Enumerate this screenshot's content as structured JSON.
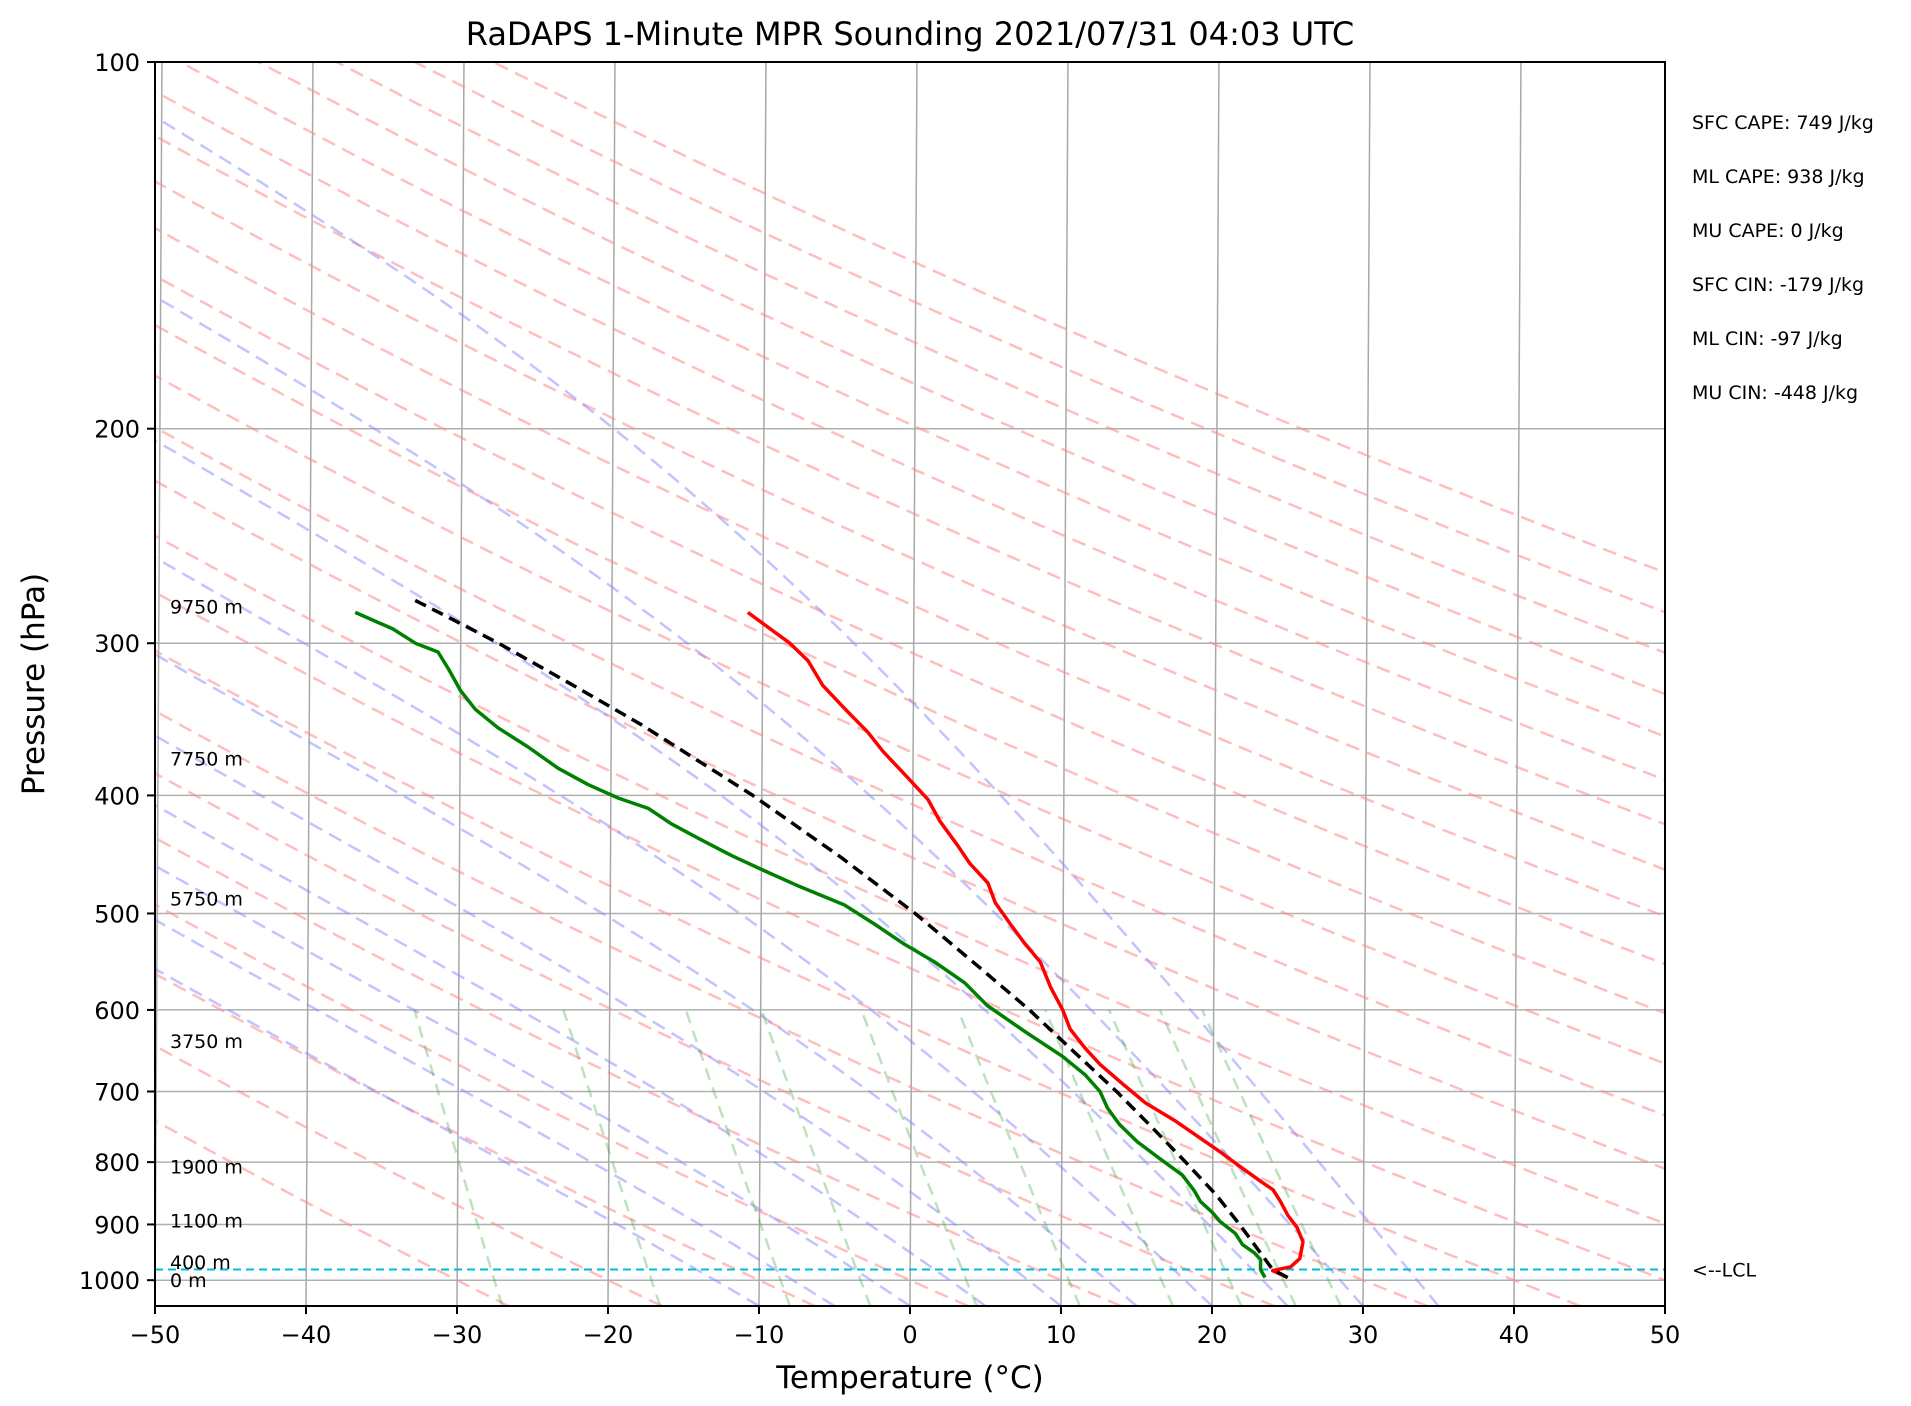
{
  "chart_data": {
    "type": "skew-t",
    "title": "RaDAPS 1-Minute MPR Sounding 2021/07/31 04:03 UTC",
    "xlabel": "Temperature (°C)",
    "ylabel": "Pressure (hPa)",
    "xlim": [
      -50,
      50
    ],
    "ylim": [
      1050,
      100
    ],
    "y_scale": "log",
    "x_ticks": [
      -50,
      -40,
      -30,
      -20,
      -10,
      0,
      10,
      20,
      30,
      40,
      50
    ],
    "x_tick_labels": [
      "−50",
      "−40",
      "−30",
      "−20",
      "−10",
      "0",
      "10",
      "20",
      "30",
      "40",
      "50"
    ],
    "y_ticks": [
      100,
      200,
      300,
      400,
      500,
      600,
      700,
      800,
      900,
      1000
    ],
    "y_tick_labels": [
      "100",
      "200",
      "300",
      "400",
      "500",
      "600",
      "700",
      "800",
      "900",
      "1000"
    ],
    "grid": true,
    "skew": 0.56,
    "height_markers": [
      {
        "pressure": 1000,
        "label": "0 m"
      },
      {
        "pressure": 966,
        "label": "400 m"
      },
      {
        "pressure": 893,
        "label": "1100 m"
      },
      {
        "pressure": 807,
        "label": "1900 m"
      },
      {
        "pressure": 636,
        "label": "3750 m"
      },
      {
        "pressure": 486,
        "label": "5750 m"
      },
      {
        "pressure": 373,
        "label": "7750 m"
      },
      {
        "pressure": 280,
        "label": "9750 m"
      }
    ],
    "stats": [
      "SFC CAPE: 749 J/kg",
      "ML CAPE: 938 J/kg",
      "MU CAPE: 0 J/kg",
      "SFC CIN: -179 J/kg",
      "ML CIN: -97 J/kg",
      "MU CIN: -448 J/kg"
    ],
    "lcl": {
      "pressure": 980,
      "label": "<--LCL"
    },
    "series": [
      {
        "role": "temperature",
        "color": "#ff0000",
        "points": [
          [
            25.0,
            995
          ],
          [
            24.0,
            982
          ],
          [
            25.2,
            975
          ],
          [
            25.8,
            960
          ],
          [
            26.0,
            930
          ],
          [
            25.6,
            905
          ],
          [
            25.0,
            885
          ],
          [
            24.5,
            862
          ],
          [
            24.0,
            843
          ],
          [
            23.2,
            830
          ],
          [
            22.0,
            810
          ],
          [
            20.5,
            785
          ],
          [
            19.0,
            762
          ],
          [
            17.5,
            740
          ],
          [
            15.5,
            715
          ],
          [
            14.0,
            690
          ],
          [
            12.5,
            665
          ],
          [
            11.5,
            645
          ],
          [
            10.5,
            622
          ],
          [
            10.0,
            600
          ],
          [
            9.2,
            575
          ],
          [
            8.5,
            548
          ],
          [
            7.5,
            530
          ],
          [
            6.5,
            510
          ],
          [
            5.5,
            490
          ],
          [
            5.0,
            472
          ],
          [
            3.8,
            455
          ],
          [
            3.0,
            440
          ],
          [
            1.8,
            420
          ],
          [
            1.0,
            403
          ],
          [
            -0.5,
            385
          ],
          [
            -2.0,
            368
          ],
          [
            -3.0,
            355
          ],
          [
            -4.5,
            340
          ],
          [
            -6.0,
            325
          ],
          [
            -7.0,
            310
          ],
          [
            -8.2,
            300
          ],
          [
            -9.5,
            292
          ],
          [
            -11.0,
            283
          ]
        ]
      },
      {
        "role": "dewpoint",
        "color": "#008000",
        "points": [
          [
            23.5,
            995
          ],
          [
            23.2,
            980
          ],
          [
            23.2,
            962
          ],
          [
            22.8,
            950
          ],
          [
            22.0,
            935
          ],
          [
            21.5,
            915
          ],
          [
            20.5,
            895
          ],
          [
            20.0,
            880
          ],
          [
            19.2,
            862
          ],
          [
            18.8,
            845
          ],
          [
            18.0,
            820
          ],
          [
            16.5,
            795
          ],
          [
            15.0,
            770
          ],
          [
            13.8,
            745
          ],
          [
            13.0,
            722
          ],
          [
            12.5,
            700
          ],
          [
            11.5,
            678
          ],
          [
            10.0,
            655
          ],
          [
            7.5,
            625
          ],
          [
            5.0,
            595
          ],
          [
            3.5,
            570
          ],
          [
            1.5,
            548
          ],
          [
            -0.5,
            530
          ],
          [
            -2.5,
            510
          ],
          [
            -4.5,
            492
          ],
          [
            -7.5,
            475
          ],
          [
            -10.0,
            460
          ],
          [
            -12.0,
            448
          ],
          [
            -14.0,
            435
          ],
          [
            -16.0,
            422
          ],
          [
            -17.5,
            410
          ],
          [
            -19.5,
            402
          ],
          [
            -21.5,
            392
          ],
          [
            -23.5,
            380
          ],
          [
            -25.5,
            365
          ],
          [
            -27.5,
            352
          ],
          [
            -29.0,
            340
          ],
          [
            -30.0,
            328
          ],
          [
            -30.8,
            315
          ],
          [
            -31.5,
            305
          ],
          [
            -33.0,
            300
          ],
          [
            -34.5,
            292
          ],
          [
            -37.0,
            283
          ]
        ]
      },
      {
        "role": "parcel",
        "color": "#000000",
        "points": [
          [
            25.0,
            995
          ],
          [
            24.0,
            980
          ],
          [
            23.2,
            950
          ],
          [
            21.8,
            900
          ],
          [
            20.2,
            850
          ],
          [
            18.2,
            800
          ],
          [
            16.0,
            750
          ],
          [
            13.6,
            700
          ],
          [
            10.8,
            650
          ],
          [
            7.8,
            600
          ],
          [
            4.2,
            550
          ],
          [
            0.2,
            500
          ],
          [
            -4.7,
            450
          ],
          [
            -10.6,
            400
          ],
          [
            -18.0,
            350
          ],
          [
            -22.5,
            325
          ],
          [
            -27.5,
            300
          ],
          [
            -30.5,
            287
          ],
          [
            -33.2,
            276
          ]
        ]
      }
    ]
  }
}
